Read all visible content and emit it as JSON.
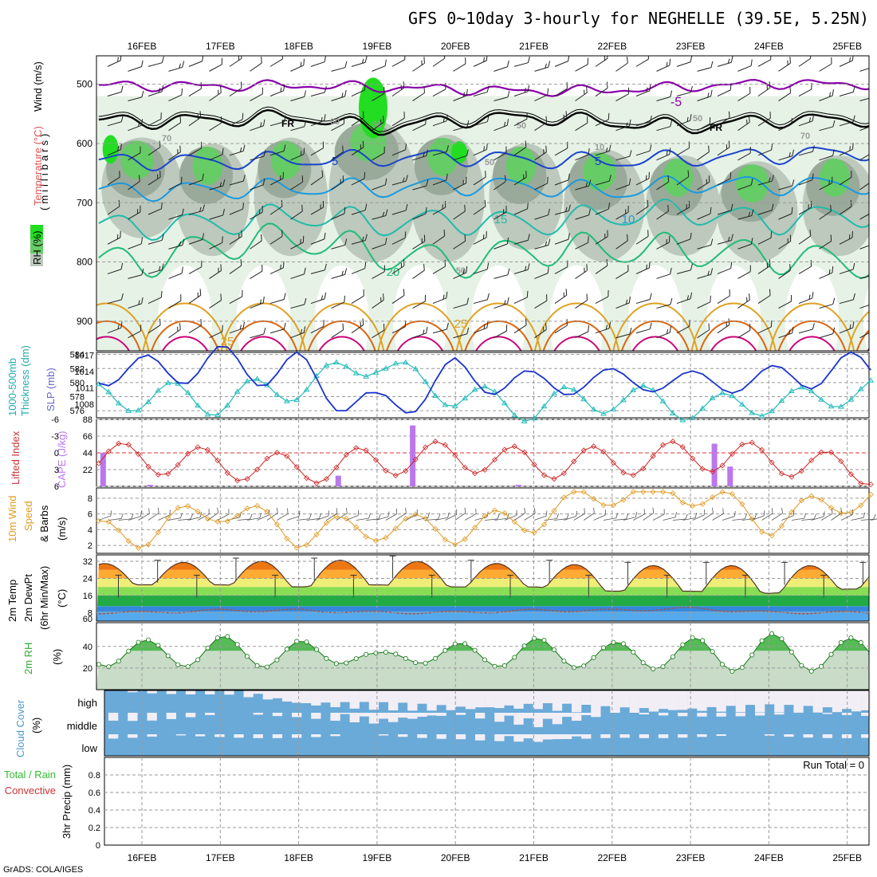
{
  "title": "GFS 0~10day 3-hourly for NEGHELLE (39.5E, 5.25N)",
  "credit": "GrADS: COLA/IGES",
  "dates": [
    "16FEB",
    "17FEB",
    "18FEB",
    "19FEB",
    "20FEB",
    "21FEB",
    "22FEB",
    "23FEB",
    "24FEB",
    "25FEB"
  ],
  "colors": {
    "rh_light": "#e6f2e6",
    "rh_mid": "#bcc9bc",
    "rh_dark": "#9aaa9a",
    "rh_green": "#66cc66",
    "rh_bright": "#22dd22",
    "temp_m5": "#8800aa",
    "temp_fr": "#000000",
    "temp_5": "#1a44cc",
    "temp_10": "#1a99e0",
    "temp_15": "#22bbaa",
    "temp_20": "#22bb77",
    "temp_25": "#e0a020",
    "temp_30": "#dd6611",
    "temp_35": "#cc0077",
    "slp": "#1a33cc",
    "thick": "#22bbbb",
    "li": "#cc2222",
    "cape": "#bb77ee",
    "wind": "#e09922",
    "cloud": "#6aaad8",
    "cloud_clear": "#f2eef6",
    "rhsfc": "#55bb55"
  },
  "panels": {
    "upper_air": {
      "ylabel": "(millibars)",
      "label_wind": "Wind (m/s)",
      "label_temp": "Temperature (°C)",
      "label_rh": "RH (%)",
      "yticks": [
        "500",
        "600",
        "700",
        "800",
        "900"
      ],
      "contour_labels": [
        "-5",
        "FR",
        "FR",
        "5",
        "5",
        "10",
        "15",
        "20",
        "25",
        "25",
        "50",
        "70",
        "60",
        "50",
        "70",
        "50",
        "10",
        "50",
        "50"
      ]
    },
    "slp_thickness": {
      "label_thick": "1000-500mb",
      "label_thick2": "Thickness (dm)",
      "label_slp": "SLP (mb)",
      "left_ticks": [
        "584",
        "582",
        "580",
        "578",
        "576"
      ],
      "right_ticks": [
        "1017",
        "1014",
        "1011",
        "1008"
      ]
    },
    "li_cape": {
      "label_li": "Lifted Index",
      "label_cape": "CAPE (J/kg)",
      "left_ticks": [
        "-6",
        "-3",
        "0",
        "3",
        "6"
      ],
      "right_ticks": [
        "88",
        "66",
        "44",
        "22"
      ]
    },
    "wind10m": {
      "label_a": "10m Wind",
      "label_b": "Speed",
      "label_c": "& Barbs",
      "label_d": "(m/s)",
      "yticks": [
        "8",
        "6",
        "4",
        "2"
      ]
    },
    "temp2m": {
      "label_a": "2m Temp",
      "label_b": "2m DewPt",
      "label_c": "(6hr Min/Max)",
      "label_d": "(°C)",
      "yticks": [
        "32",
        "24",
        "16",
        "8"
      ],
      "extra_tick": "60"
    },
    "rh2m": {
      "label_a": "2m RH",
      "label_b": "(%)",
      "yticks": [
        "40",
        "20"
      ]
    },
    "cloud": {
      "label_a": "Cloud Cover",
      "label_b": "(%)",
      "levels": [
        "high",
        "middle",
        "low"
      ]
    },
    "precip": {
      "label_a": "Total / Rain",
      "label_b": "Convective",
      "label_c": "3hr Precip (mm)",
      "yticks": [
        "0.8",
        "0.6",
        "0.4",
        "0.2",
        "0"
      ],
      "run_total": "Run Total = 0"
    }
  },
  "chart_data": [
    {
      "type": "line",
      "name_ref": "upper_air_temperature",
      "x": [
        "16FEB",
        "17FEB",
        "18FEB",
        "19FEB",
        "20FEB",
        "21FEB",
        "22FEB",
        "23FEB",
        "24FEB",
        "25FEB"
      ],
      "ylim": [
        440,
        950
      ],
      "series": [
        {
          "name": "-5",
          "values": [
            502,
            503,
            502,
            505,
            508,
            512,
            510,
            504,
            498,
            500
          ]
        },
        {
          "name": "FR",
          "values": [
            562,
            560,
            555,
            575,
            560,
            555,
            565,
            572,
            560,
            560
          ]
        },
        {
          "name": "5",
          "values": [
            630,
            630,
            628,
            625,
            622,
            628,
            630,
            625,
            620,
            615
          ]
        },
        {
          "name": "10",
          "values": [
            680,
            678,
            675,
            676,
            670,
            672,
            682,
            668,
            670,
            670
          ]
        },
        {
          "name": "15",
          "values": [
            740,
            735,
            720,
            735,
            730,
            735,
            722,
            715,
            732,
            720
          ]
        },
        {
          "name": "20",
          "values": [
            800,
            770,
            760,
            785,
            800,
            780,
            778,
            780,
            790,
            800
          ]
        }
      ]
    },
    {
      "type": "line",
      "name_ref": "slp_thickness",
      "x": [
        "16FEB",
        "17FEB",
        "18FEB",
        "19FEB",
        "20FEB",
        "21FEB",
        "22FEB",
        "23FEB",
        "24FEB",
        "25FEB"
      ],
      "ylim_left": [
        575,
        584
      ],
      "ylim_right": [
        1005,
        1017
      ],
      "series": [
        {
          "name": "SLP (mb)",
          "values": [
            1014.0,
            1015.5,
            1014.0,
            1006.5,
            1013.5,
            1011.5,
            1012.5,
            1012.0,
            1012.5,
            1014.5
          ]
        },
        {
          "name": "Thickness (dm)",
          "values": [
            578.0,
            577.5,
            579.5,
            583.0,
            578.0,
            576.5,
            578.0,
            576.5,
            577.0,
            578.5
          ]
        }
      ]
    },
    {
      "type": "bar",
      "name_ref": "li_cape",
      "x": [
        "16FEB",
        "17FEB",
        "18FEB",
        "19FEB",
        "20FEB",
        "21FEB",
        "22FEB",
        "23FEB",
        "24FEB",
        "25FEB"
      ],
      "ylim_li": [
        6,
        -6
      ],
      "ylim_cape": [
        0,
        88
      ],
      "series": [
        {
          "name": "Lifted Index",
          "values": [
            1.0,
            2.0,
            3.0,
            1.5,
            0.5,
            2.0,
            1.5,
            0.5,
            1.0,
            3.0
          ]
        },
        {
          "name": "CAPE (J/kg)",
          "values": [
            44,
            2,
            0,
            14,
            80,
            2,
            0,
            56,
            0,
            0
          ]
        }
      ]
    },
    {
      "type": "line",
      "name_ref": "wind10m",
      "x": [
        "16FEB",
        "17FEB",
        "18FEB",
        "19FEB",
        "20FEB",
        "21FEB",
        "22FEB",
        "23FEB",
        "24FEB",
        "25FEB"
      ],
      "ylim": [
        1,
        9
      ],
      "series": [
        {
          "name": "Speed",
          "values": [
            2.0,
            5.5,
            2.0,
            3.0,
            2.5,
            4.0,
            7.5,
            7.5,
            3.5,
            6.5
          ]
        }
      ]
    },
    {
      "type": "area",
      "name_ref": "temp2m",
      "x": [
        "16FEB",
        "17FEB",
        "18FEB",
        "19FEB",
        "20FEB",
        "21FEB",
        "22FEB",
        "23FEB",
        "24FEB",
        "25FEB"
      ],
      "ylim": [
        4,
        36
      ],
      "series": [
        {
          "name": "2m Temp max",
          "values": [
            31,
            32,
            32,
            33,
            31,
            31,
            30,
            30,
            30,
            30
          ]
        },
        {
          "name": "2m Temp min",
          "values": [
            21,
            21,
            20,
            21,
            20,
            20,
            18,
            18,
            17,
            19
          ]
        },
        {
          "name": "2m DewPt",
          "values": [
            8,
            9,
            9,
            8,
            8,
            9,
            9,
            10,
            8,
            8
          ]
        }
      ]
    },
    {
      "type": "area",
      "name_ref": "rh2m",
      "x": [
        "16FEB",
        "17FEB",
        "18FEB",
        "19FEB",
        "20FEB",
        "21FEB",
        "22FEB",
        "23FEB",
        "24FEB",
        "25FEB"
      ],
      "ylim": [
        0,
        60
      ],
      "series": [
        {
          "name": "max",
          "values": [
            46,
            50,
            46,
            34,
            43,
            48,
            44,
            48,
            52,
            48
          ]
        },
        {
          "name": "min",
          "values": [
            21,
            21,
            20,
            27,
            22,
            20,
            20,
            18,
            16,
            18
          ]
        }
      ]
    },
    {
      "type": "bar",
      "name_ref": "cloud",
      "x": [
        "16FEB",
        "17FEB",
        "18FEB",
        "19FEB",
        "20FEB",
        "21FEB",
        "22FEB",
        "23FEB",
        "24FEB",
        "25FEB"
      ],
      "series": [
        {
          "name": "high",
          "values": [
            100,
            100,
            40,
            30,
            20,
            30,
            10,
            15,
            20,
            10
          ]
        },
        {
          "name": "middle",
          "values": [
            80,
            100,
            95,
            60,
            100,
            50,
            100,
            100,
            100,
            100
          ]
        },
        {
          "name": "low",
          "values": [
            95,
            100,
            100,
            100,
            95,
            70,
            100,
            100,
            100,
            100
          ]
        }
      ]
    },
    {
      "type": "bar",
      "name_ref": "precip",
      "x": [
        "16FEB",
        "17FEB",
        "18FEB",
        "19FEB",
        "20FEB",
        "21FEB",
        "22FEB",
        "23FEB",
        "24FEB",
        "25FEB"
      ],
      "ylim": [
        0,
        1.0
      ],
      "series": [
        {
          "name": "Total / Rain",
          "values": [
            0,
            0,
            0,
            0,
            0,
            0,
            0,
            0,
            0,
            0
          ]
        }
      ]
    }
  ]
}
